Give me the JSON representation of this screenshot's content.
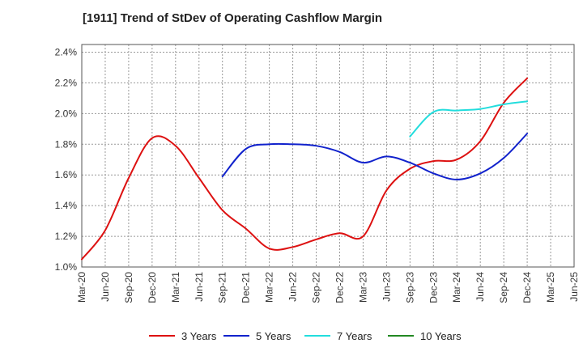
{
  "title": "[1911]  Trend of StDev of Operating Cashflow Margin",
  "chart_data": {
    "type": "line",
    "title": "[1911]  Trend of StDev of Operating Cashflow Margin",
    "xlabel": "",
    "ylabel": "",
    "x_labels": [
      "Mar-20",
      "Jun-20",
      "Sep-20",
      "Dec-20",
      "Mar-21",
      "Jun-21",
      "Sep-21",
      "Dec-21",
      "Mar-22",
      "Jun-22",
      "Sep-22",
      "Dec-22",
      "Mar-23",
      "Jun-23",
      "Sep-23",
      "Dec-23",
      "Mar-24",
      "Jun-24",
      "Sep-24",
      "Dec-24",
      "Mar-25",
      "Jun-25"
    ],
    "y_ticks": [
      "1.0%",
      "1.2%",
      "1.4%",
      "1.6%",
      "1.8%",
      "2.0%",
      "2.2%",
      "2.4%"
    ],
    "ylim": [
      1.0,
      2.45
    ],
    "grid": true,
    "legend_position": "bottom",
    "series": [
      {
        "name": "3 Years",
        "color": "#dd1111",
        "values": [
          1.05,
          1.24,
          1.58,
          1.84,
          1.79,
          1.58,
          1.37,
          1.25,
          1.12,
          1.13,
          1.18,
          1.22,
          1.2,
          1.5,
          1.64,
          1.69,
          1.7,
          1.82,
          2.07,
          2.23,
          null,
          null
        ]
      },
      {
        "name": "5 Years",
        "color": "#1122cc",
        "values": [
          null,
          null,
          null,
          null,
          null,
          null,
          1.59,
          1.77,
          1.8,
          1.8,
          1.79,
          1.75,
          1.68,
          1.72,
          1.68,
          1.61,
          1.57,
          1.61,
          1.71,
          1.87,
          null,
          null
        ]
      },
      {
        "name": "7 Years",
        "color": "#22dddd",
        "values": [
          null,
          null,
          null,
          null,
          null,
          null,
          null,
          null,
          null,
          null,
          null,
          null,
          null,
          null,
          1.85,
          2.01,
          2.02,
          2.03,
          2.06,
          2.08,
          null,
          null
        ]
      },
      {
        "name": "10 Years",
        "color": "#228822",
        "values": [
          null,
          null,
          null,
          null,
          null,
          null,
          null,
          null,
          null,
          null,
          null,
          null,
          null,
          null,
          null,
          null,
          null,
          null,
          null,
          null,
          null,
          null
        ]
      }
    ]
  }
}
